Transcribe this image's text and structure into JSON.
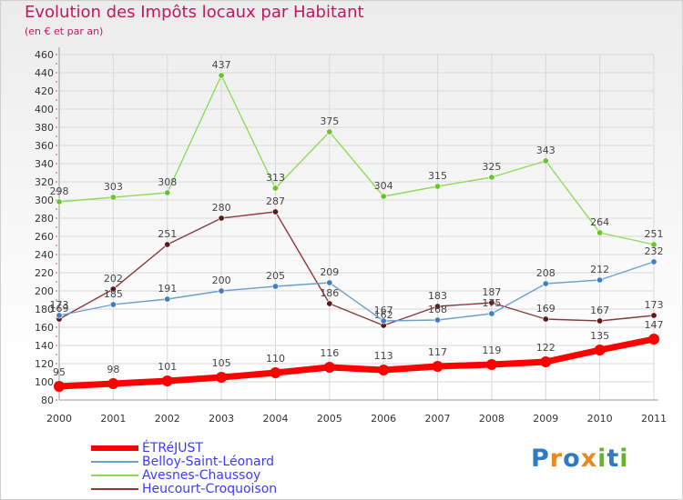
{
  "chart_data": {
    "type": "line",
    "title": "Evolution des Impôts locaux par Habitant",
    "subtitle": "(en € et par an)",
    "xlabel": "",
    "ylabel": "",
    "x": [
      "2000",
      "2001",
      "2002",
      "2003",
      "2004",
      "2005",
      "2006",
      "2007",
      "2008",
      "2009",
      "2010",
      "2011"
    ],
    "ylim": [
      80,
      460
    ],
    "yticks": [
      80,
      100,
      120,
      140,
      160,
      180,
      200,
      220,
      240,
      260,
      280,
      300,
      320,
      340,
      360,
      380,
      400,
      420,
      440,
      460
    ],
    "grid": true,
    "legend_position": "bottom-left",
    "series": [
      {
        "name": "ÉTRéJUST",
        "color": "#ff0000",
        "values": [
          95,
          98,
          101,
          105,
          110,
          116,
          113,
          117,
          119,
          122,
          135,
          147
        ],
        "labels": [
          "95",
          "98",
          "101",
          "105",
          "110",
          "116",
          "113",
          "117",
          "119",
          "122",
          "135",
          "147"
        ]
      },
      {
        "name": "Belloy-Saint-Léonard",
        "color": "#6a9fd0",
        "values": [
          173,
          185,
          191,
          200,
          205,
          209,
          167,
          168,
          175,
          208,
          212,
          232
        ],
        "labels": [
          "173",
          "185",
          "191",
          "200",
          "205",
          "209",
          "167",
          "168",
          "175",
          "208",
          "212",
          "232"
        ]
      },
      {
        "name": "Avesnes-Chaussoy",
        "color": "#8fdb5a",
        "values": [
          298,
          303,
          308,
          437,
          313,
          375,
          304,
          315,
          325,
          343,
          264,
          251
        ],
        "labels": [
          "298",
          "303",
          "308",
          "437",
          "313",
          "375",
          "304",
          "315",
          "325",
          "343",
          "264",
          "251"
        ]
      },
      {
        "name": "Heucourt-Croquoison",
        "color": "#8b3a3a",
        "values": [
          169,
          202,
          251,
          280,
          287,
          186,
          162,
          183,
          187,
          169,
          167,
          173
        ],
        "labels": [
          "169",
          "202",
          "251",
          "280",
          "287",
          "186",
          "162",
          "183",
          "187",
          "169",
          "167",
          "173"
        ]
      }
    ]
  },
  "legend": {
    "items": [
      {
        "label": "ÉTRéJUST",
        "color": "#ff0000"
      },
      {
        "label": "Belloy-Saint-Léonard",
        "color": "#6a9fd0"
      },
      {
        "label": "Avesnes-Chaussoy",
        "color": "#8fdb5a"
      },
      {
        "label": "Heucourt-Croquoison",
        "color": "#8b3a3a"
      }
    ]
  },
  "logo": {
    "letters": [
      "P",
      "r",
      "o",
      "x",
      "i",
      "t",
      "i"
    ]
  }
}
